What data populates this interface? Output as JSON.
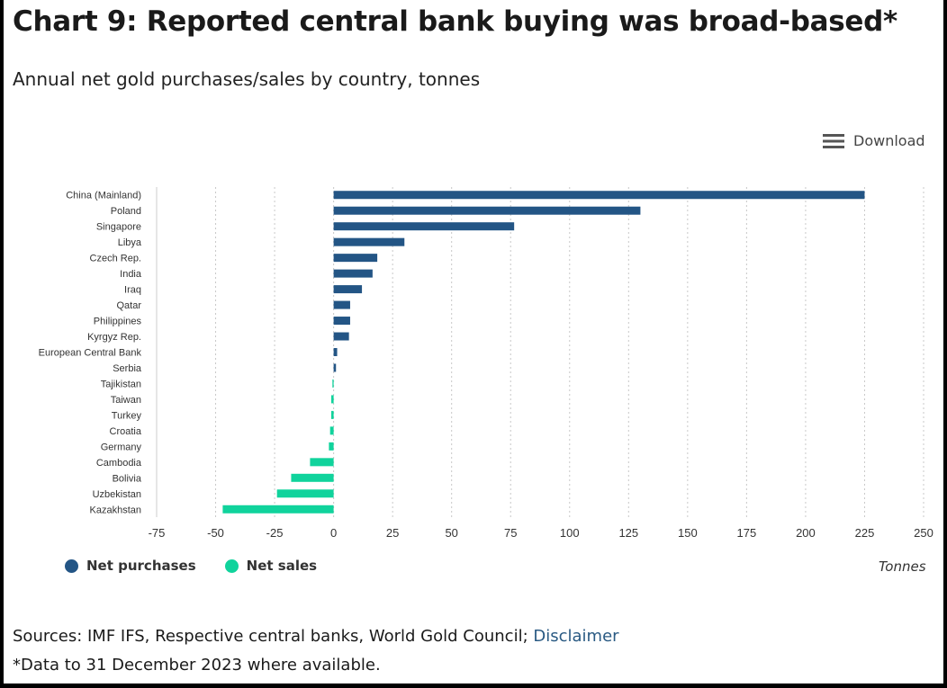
{
  "header": {
    "title": "Chart 9: Reported central bank buying was broad-based*",
    "subtitle": "Annual net gold purchases/sales by country, tonnes"
  },
  "toolbar": {
    "download_label": "Download",
    "download_icon": "menu-icon"
  },
  "legend": {
    "items": [
      {
        "label": "Net purchases",
        "color": "#235585"
      },
      {
        "label": "Net sales",
        "color": "#10d39c"
      }
    ],
    "unit_label": "Tonnes"
  },
  "footer": {
    "sources_prefix": "Sources: IMF IFS, Respective central banks, World Gold Council; ",
    "disclaimer_link": "Disclaimer",
    "footnote": "*Data to 31 December 2023 where available."
  },
  "chart_data": {
    "type": "bar",
    "orientation": "horizontal",
    "categories": [
      "China (Mainland)",
      "Poland",
      "Singapore",
      "Libya",
      "Czech Rep.",
      "India",
      "Iraq",
      "Qatar",
      "Philippines",
      "Kyrgyz Rep.",
      "European Central Bank",
      "Serbia",
      "Tajikistan",
      "Taiwan",
      "Turkey",
      "Croatia",
      "Germany",
      "Cambodia",
      "Bolivia",
      "Uzbekistan",
      "Kazakhstan"
    ],
    "values": [
      225,
      130,
      76.5,
      30,
      18.5,
      16.5,
      12,
      7,
      7,
      6.5,
      1.5,
      1,
      -0.5,
      -1,
      -1,
      -1.5,
      -2,
      -10,
      -18,
      -24,
      -47
    ],
    "positive_color": "#235585",
    "negative_color": "#10d39c",
    "xlim": [
      -75,
      250
    ],
    "xticks": [
      -75,
      -50,
      -25,
      0,
      25,
      50,
      75,
      100,
      125,
      150,
      175,
      200,
      225,
      250
    ],
    "xlabel": "Tonnes",
    "grid": "vertical dotted"
  }
}
